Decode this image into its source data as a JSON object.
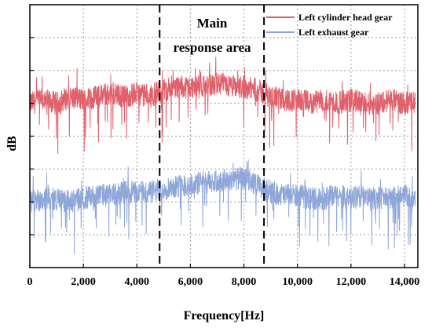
{
  "chart_data": {
    "type": "line",
    "title": "",
    "xlabel": "Frequency[Hz]",
    "ylabel": "dB",
    "xlim": [
      0,
      14500
    ],
    "ylim": [
      0,
      8
    ],
    "y_ticks_labeled": false,
    "x_ticks": [
      0,
      2000,
      4000,
      6000,
      8000,
      10000,
      12000,
      14000
    ],
    "x_tick_labels": [
      "0",
      "2,000",
      "4,000",
      "6,000",
      "8,000",
      "10,000",
      "12,000",
      "14,000"
    ],
    "grid": true,
    "legend_position": "top-right",
    "annotation": {
      "lines": [
        "Main",
        "response area"
      ],
      "x_start": 4850,
      "x_end": 8750
    },
    "series": [
      {
        "name": "Left cylinder head gear",
        "color": "#e0606b",
        "x": [
          0,
          500,
          1000,
          1500,
          2000,
          2500,
          3000,
          3500,
          4000,
          4500,
          5000,
          5500,
          6000,
          6500,
          7000,
          7500,
          8000,
          8500,
          9000,
          9500,
          10000,
          10500,
          11000,
          11500,
          12000,
          12500,
          13000,
          13500,
          14000,
          14400
        ],
        "y": [
          5.0,
          5.1,
          5.0,
          5.2,
          5.1,
          5.2,
          5.3,
          5.2,
          5.3,
          5.2,
          5.4,
          5.5,
          5.5,
          5.5,
          5.6,
          5.5,
          5.5,
          5.4,
          5.2,
          5.1,
          5.1,
          5.0,
          5.1,
          5.0,
          5.1,
          5.0,
          5.0,
          5.1,
          5.0,
          5.0
        ]
      },
      {
        "name": "Left exhaust gear",
        "color": "#8fa6d8",
        "x": [
          0,
          500,
          1000,
          1500,
          2000,
          2500,
          3000,
          3500,
          4000,
          4500,
          5000,
          5500,
          6000,
          6500,
          7000,
          7500,
          8000,
          8500,
          9000,
          9500,
          10000,
          10500,
          11000,
          11500,
          12000,
          12500,
          13000,
          13500,
          14000,
          14400
        ],
        "y": [
          2.0,
          2.1,
          2.1,
          2.0,
          2.1,
          2.2,
          2.2,
          2.3,
          2.3,
          2.3,
          2.4,
          2.5,
          2.5,
          2.6,
          2.6,
          2.7,
          2.7,
          2.5,
          2.3,
          2.2,
          2.2,
          2.1,
          2.1,
          2.2,
          2.1,
          2.2,
          2.1,
          2.1,
          2.2,
          2.1
        ]
      }
    ]
  }
}
